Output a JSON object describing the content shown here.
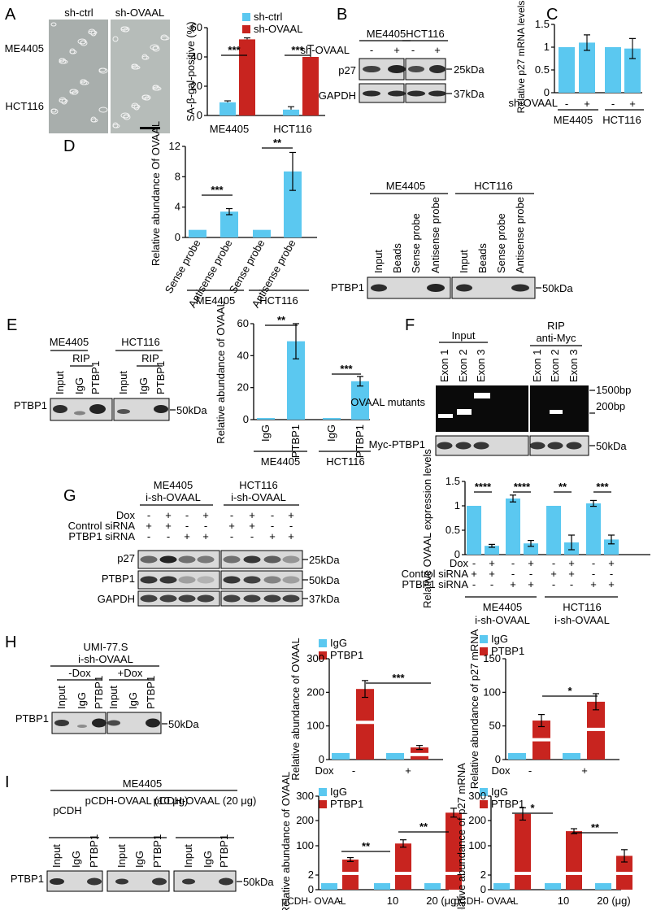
{
  "colors": {
    "ctrl": "#5BC8F0",
    "kd": "#C8241F",
    "blot_bg": "#d9d9d9",
    "band": "#1a1a1a"
  },
  "icons": {
    "scale_bar": "scale-bar-icon"
  },
  "panels": {
    "A": {
      "letter": "A",
      "col_labels": [
        "sh-ctrl",
        "sh-OVAAL"
      ],
      "row_labels": [
        "ME4405",
        "HCT116"
      ],
      "legend": [
        "sh-ctrl",
        "sh-OVAAL"
      ],
      "chart_data": {
        "type": "bar",
        "categories": [
          "ME4405",
          "HCT116"
        ],
        "series": [
          {
            "name": "sh-ctrl",
            "values": [
              9,
              4
            ]
          },
          {
            "name": "sh-OVAAL",
            "values": [
              52,
              40
            ]
          }
        ],
        "errors": [
          [
            1,
            2
          ],
          [
            1,
            8
          ]
        ],
        "ylabel": "SA-β-gal-positive (%)",
        "ylim": [
          0,
          60
        ],
        "ticks": [
          "0",
          "20",
          "40",
          "60"
        ],
        "sig": [
          "***",
          "***"
        ]
      }
    },
    "B": {
      "letter": "B",
      "cells": [
        "ME4405",
        "HCT116"
      ],
      "treatment": "sh-OVAAL",
      "signs": [
        "-",
        "+",
        "-",
        "+"
      ],
      "rows": [
        "p27",
        "GAPDH"
      ],
      "markers": [
        "25kDa",
        "37kDa"
      ]
    },
    "C": {
      "letter": "C",
      "chart_data": {
        "type": "bar",
        "categories": [
          "-",
          "+",
          "-",
          "+"
        ],
        "values": [
          1.0,
          1.1,
          1.0,
          0.97
        ],
        "errors": [
          0,
          0.17,
          0,
          0.22
        ],
        "ylabel": "Relative p27 mRNA levels",
        "ylim": [
          0,
          1.5
        ],
        "ticks": [
          "0",
          "0.5",
          "1",
          "1.5"
        ],
        "groups": [
          "ME4405",
          "HCT116"
        ],
        "treatment": "sh-OVAAL"
      }
    },
    "D": {
      "letter": "D",
      "chart_data": {
        "type": "bar",
        "categories": [
          "Sense probe",
          "Antisense probe",
          "Sense probe",
          "Antisense probe"
        ],
        "values": [
          1.0,
          3.4,
          1.0,
          8.7
        ],
        "errors": [
          0,
          0.4,
          0,
          2.5
        ],
        "ylabel": "Relative abundance Of OVAAL",
        "ylim": [
          0,
          12
        ],
        "ticks": [
          "0",
          "4",
          "8",
          "12"
        ],
        "groups": [
          "ME4405",
          "HCT116"
        ],
        "sig": [
          "***",
          "**"
        ]
      },
      "blot": {
        "cells": [
          "ME4405",
          "HCT116"
        ],
        "lanes": [
          "Input",
          "Beads",
          "Sense probe",
          "Antisense probe"
        ],
        "row": "PTBP1",
        "marker": "50kDa"
      }
    },
    "E": {
      "letter": "E",
      "blot": {
        "cells": [
          "ME4405",
          "HCT116"
        ],
        "rip": "RIP",
        "lanes": [
          "Input",
          "IgG",
          "PTBP1"
        ],
        "row": "PTBP1",
        "marker": "50kDa"
      },
      "chart_data": {
        "type": "bar",
        "categories": [
          "IgG",
          "PTBP1",
          "IgG",
          "PTBP1"
        ],
        "values": [
          1,
          49,
          1,
          24
        ],
        "errors": [
          0,
          11,
          0,
          3
        ],
        "ylabel": "Relative abundance of OVAAL",
        "ylim": [
          0,
          60
        ],
        "ticks": [
          "0",
          "20",
          "40",
          "60"
        ],
        "groups": [
          "ME4405",
          "HCT116"
        ],
        "sig": [
          "**",
          "***"
        ]
      }
    },
    "F": {
      "letter": "F",
      "headers": [
        "Input",
        "RIP",
        "anti-Myc"
      ],
      "lanes": [
        "Exon 1",
        "Exon 2",
        "Exon 3"
      ],
      "row1": "OVAAL mutants",
      "row2": "Myc-PTBP1",
      "markers": [
        "1500bp",
        "200bp",
        "50kDa"
      ]
    },
    "G": {
      "letter": "G",
      "cells": [
        "ME4405",
        "HCT116"
      ],
      "construct": "i-sh-OVAAL",
      "conditions": [
        {
          "label": "Dox",
          "signs": [
            "-",
            "+",
            "-",
            "+"
          ]
        },
        {
          "label": "Control siRNA",
          "signs": [
            "+",
            "+",
            "-",
            "-"
          ]
        },
        {
          "label": "PTBP1 siRNA",
          "signs": [
            "-",
            "-",
            "+",
            "+"
          ]
        }
      ],
      "rows": [
        "p27",
        "PTBP1",
        "GAPDH"
      ],
      "markers": [
        "25kDa",
        "50kDa",
        "37kDa"
      ],
      "chart_data": {
        "type": "bar",
        "values": [
          1.0,
          0.18,
          1.15,
          0.23,
          1.0,
          0.25,
          1.05,
          0.31
        ],
        "errors": [
          0,
          0.03,
          0.07,
          0.06,
          0,
          0.15,
          0.06,
          0.09
        ],
        "ylabel": "Relative OVAAL expression levels",
        "ylim": [
          0,
          1.5
        ],
        "ticks": [
          "0",
          "0.5",
          "1",
          "1.5"
        ],
        "sig": [
          "****",
          "****",
          "**",
          "***"
        ],
        "groups": [
          "ME4405 i-sh-OVAAL",
          "HCT116 i-sh-OVAAL"
        ]
      }
    },
    "H": {
      "letter": "H",
      "blot": {
        "cell": "UMI-77.S",
        "construct": "i-sh-OVAAL",
        "groups": [
          "-Dox",
          "+Dox"
        ],
        "lanes": [
          "Input",
          "IgG",
          "PTBP1"
        ],
        "row": "PTBP1",
        "marker": "50kDa"
      },
      "legend": [
        "IgG",
        "PTBP1"
      ],
      "chart1": {
        "type": "bar",
        "categories": [
          "-",
          "+"
        ],
        "series": [
          {
            "name": "IgG",
            "values": [
              1,
              1
            ]
          },
          {
            "name": "PTBP1",
            "values": [
              210,
              36
            ]
          }
        ],
        "errors": [
          [
            0,
            0
          ],
          [
            25,
            6
          ]
        ],
        "ylabel": "Relative abundance of OVAAL",
        "ticks": [
          "0",
          "100",
          "200",
          "300"
        ],
        "ylim": [
          0,
          300
        ],
        "xlabel": "Dox",
        "sig": "***"
      },
      "chart2": {
        "type": "bar",
        "categories": [
          "-",
          "+"
        ],
        "series": [
          {
            "name": "IgG",
            "values": [
              1,
              1
            ]
          },
          {
            "name": "PTBP1",
            "values": [
              58,
              86
            ]
          }
        ],
        "errors": [
          [
            0,
            0
          ],
          [
            9,
            12
          ]
        ],
        "ylabel": "Relative abundance of p27 mRNA",
        "ticks": [
          "0",
          "50",
          "100",
          "150"
        ],
        "ylim": [
          0,
          150
        ],
        "xlabel": "Dox",
        "sig": "*"
      }
    },
    "I": {
      "letter": "I",
      "blot": {
        "cell": "ME4405",
        "groups": [
          "pCDH",
          "pCDH-OVAAL (10 μg)",
          "pCDH-OVAAL (20 μg)"
        ],
        "lanes": [
          "Input",
          "IgG",
          "PTBP1"
        ],
        "row": "PTBP1",
        "marker": "50kDa"
      },
      "legend": [
        "IgG",
        "PTBP1"
      ],
      "chart1": {
        "type": "bar",
        "categories": [
          "-",
          "10",
          "20 (μg)"
        ],
        "series": [
          {
            "name": "IgG",
            "values": [
              1,
              1,
              1
            ]
          },
          {
            "name": "PTBP1",
            "values": [
              45,
              110,
              235
            ]
          }
        ],
        "errors": [
          [
            0,
            0,
            0
          ],
          [
            8,
            15,
            18
          ]
        ],
        "ylabel": "Relative abundance of OVAAL",
        "ticks": [
          "0",
          "2",
          "100",
          "200",
          "300"
        ],
        "ylim": [
          0,
          300
        ],
        "xlabel": "pCDH- OVAAL",
        "sig": [
          "**",
          "**"
        ]
      },
      "chart2": {
        "type": "bar",
        "categories": [
          "-",
          "10",
          "20 (μg)"
        ],
        "series": [
          {
            "name": "IgG",
            "values": [
              1,
              1,
              1
            ]
          },
          {
            "name": "PTBP1",
            "values": [
              230,
              160,
              60
            ]
          }
        ],
        "errors": [
          [
            0,
            0,
            0
          ],
          [
            25,
            10,
            25
          ]
        ],
        "ylabel": "Relative abundance of p27 mRNA",
        "ticks": [
          "0",
          "2",
          "100",
          "200",
          "300"
        ],
        "ylim": [
          0,
          300
        ],
        "xlabel": "pCDH- OVAAL",
        "sig": [
          "*",
          "**"
        ]
      }
    }
  }
}
